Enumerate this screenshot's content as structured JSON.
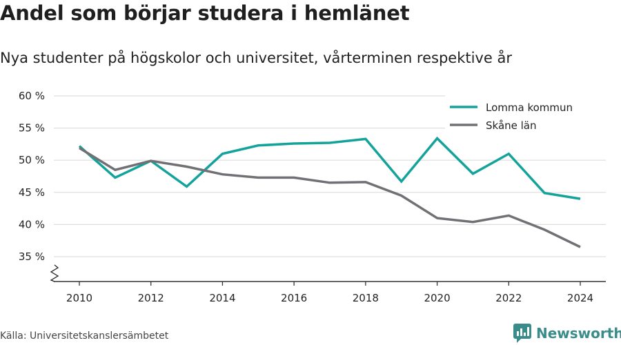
{
  "title": "Andel som börjar studera i hemlänet",
  "subtitle": "Nya studenter på högskolor och universitet, vårterminen respektive år",
  "source": "Källa: Universitetskanslersämbetet",
  "brand": {
    "name": "Newsworthy",
    "icon": "newsworthy-logo-icon"
  },
  "colors": {
    "lomma": "#14a39a",
    "skane": "#707075",
    "grid": "#dddddd",
    "axis": "#333333"
  },
  "chart_data": {
    "type": "line",
    "x": [
      2010,
      2011,
      2012,
      2013,
      2014,
      2015,
      2016,
      2017,
      2018,
      2019,
      2020,
      2021,
      2022,
      2023,
      2024
    ],
    "series": [
      {
        "name": "Lomma kommun",
        "values": [
          52.2,
          47.3,
          49.9,
          45.9,
          51.0,
          52.3,
          52.6,
          52.7,
          53.3,
          46.7,
          53.4,
          47.9,
          51.0,
          44.9,
          44.0
        ]
      },
      {
        "name": "Skåne län",
        "values": [
          51.9,
          48.5,
          49.9,
          49.0,
          47.8,
          47.3,
          47.3,
          46.5,
          46.6,
          44.5,
          41.0,
          40.4,
          41.4,
          39.2,
          36.5
        ]
      }
    ],
    "xticks": [
      "2010",
      "2012",
      "2014",
      "2016",
      "2018",
      "2020",
      "2022",
      "2024"
    ],
    "yticks": [
      "35 %",
      "40 %",
      "45 %",
      "50 %",
      "55 %",
      "60 %"
    ],
    "ylim": [
      35,
      60
    ],
    "y_axis_break": true,
    "grid": true,
    "legend_position": "top-right",
    "xlabel": "",
    "ylabel": ""
  }
}
